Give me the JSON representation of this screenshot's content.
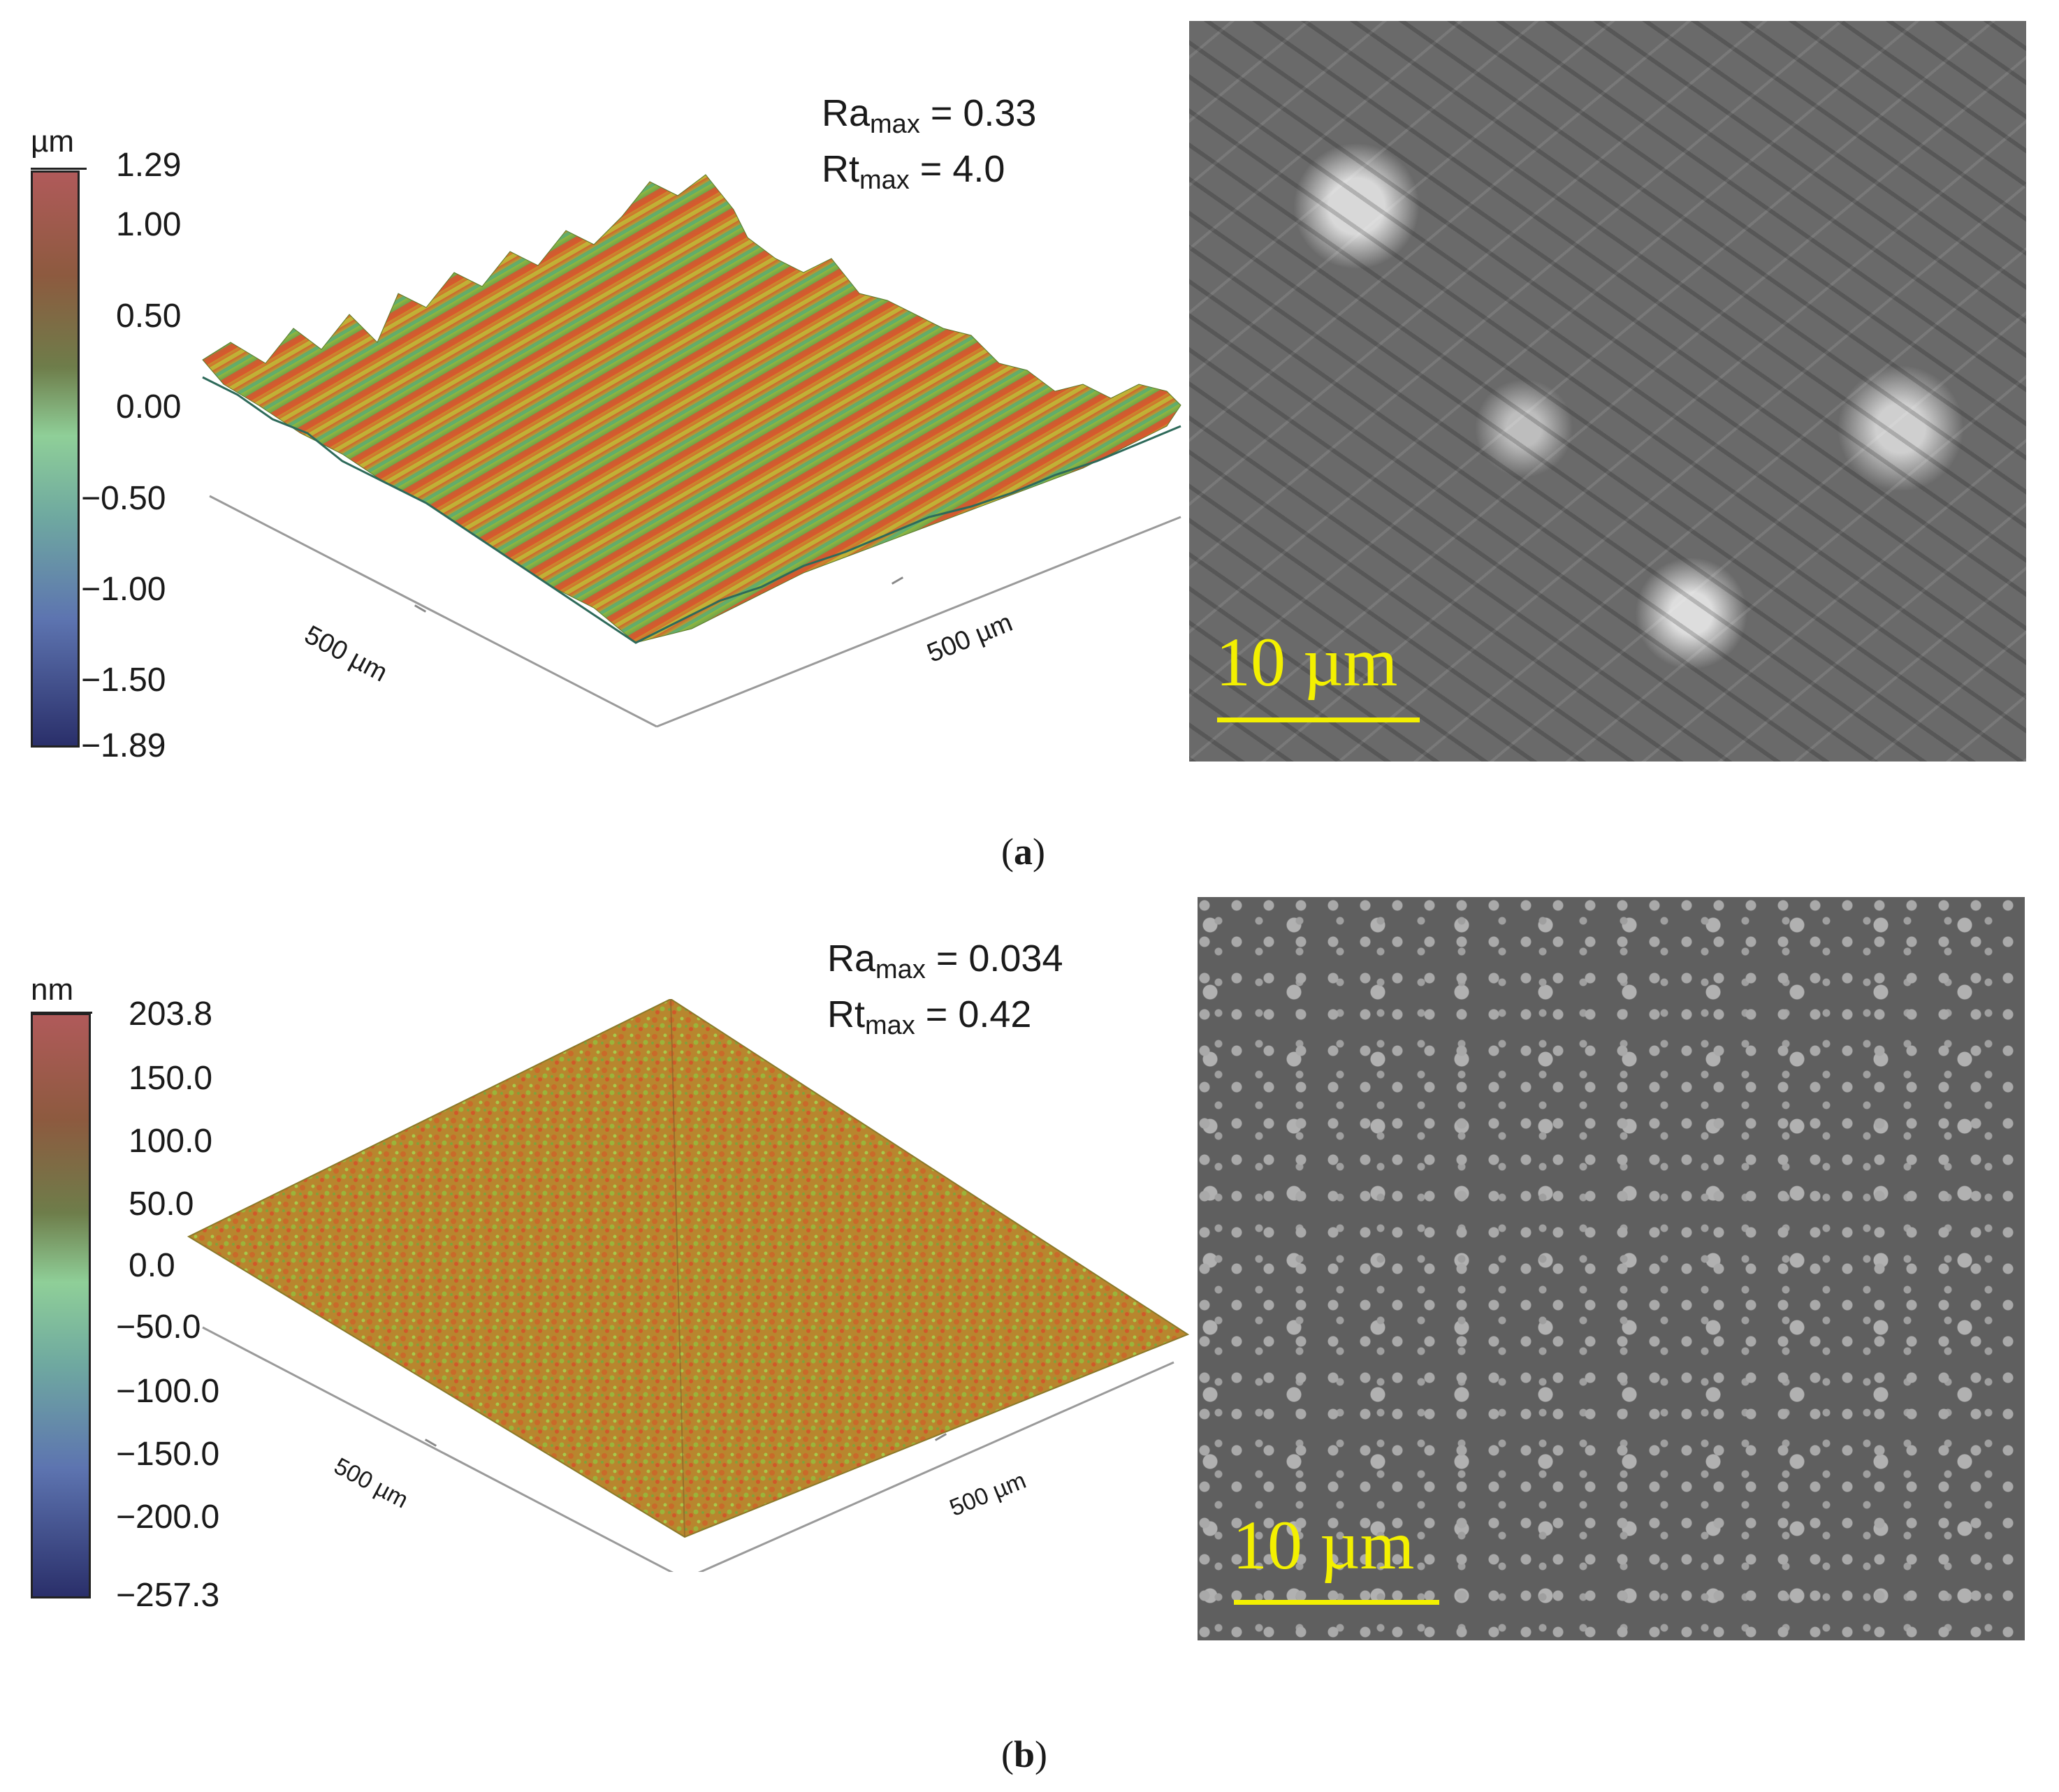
{
  "panels": [
    {
      "caption_letter": "a",
      "colorbar": {
        "unit": "µm",
        "ticks": [
          "1.29",
          "1.00",
          "0.50",
          "0.00",
          "−0.50",
          "−1.00",
          "−1.50",
          "−1.89"
        ],
        "colors": [
          "#b05a5a",
          "#8a5a3a",
          "#6a8a52",
          "#9fd6a2",
          "#6aa8a0",
          "#5a6fae",
          "#2a2f6a"
        ]
      },
      "roughness": {
        "ra_prefix": "Ra",
        "ra_sub": "max",
        "ra_value": " = 0.33",
        "rt_prefix": "Rt",
        "rt_sub": "max",
        "rt_value": " = 4.0"
      },
      "axis_left_label": "500 µm",
      "axis_right_label": "500 µm",
      "surface_texture": "coarse-directional-grooves",
      "sem_scale_label": "10 µm"
    },
    {
      "caption_letter": "b",
      "colorbar": {
        "unit": "nm",
        "ticks": [
          "203.8",
          "150.0",
          "100.0",
          "50.0",
          "0.0",
          "−50.0",
          "−100.0",
          "−150.0",
          "−200.0",
          "−257.3"
        ],
        "colors": [
          "#b05a5a",
          "#8a5a3a",
          "#6a8a52",
          "#9fd6a2",
          "#6aa8a0",
          "#5a6fae",
          "#2a2f6a"
        ]
      },
      "roughness": {
        "ra_prefix": "Ra",
        "ra_sub": "max",
        "ra_value": " = 0.034",
        "rt_prefix": "Rt",
        "rt_sub": "max",
        "rt_value": " = 0.42"
      },
      "axis_left_label": "500 µm",
      "axis_right_label": "500 µm",
      "surface_texture": "fine-uniform",
      "sem_scale_label": "10 µm"
    }
  ]
}
